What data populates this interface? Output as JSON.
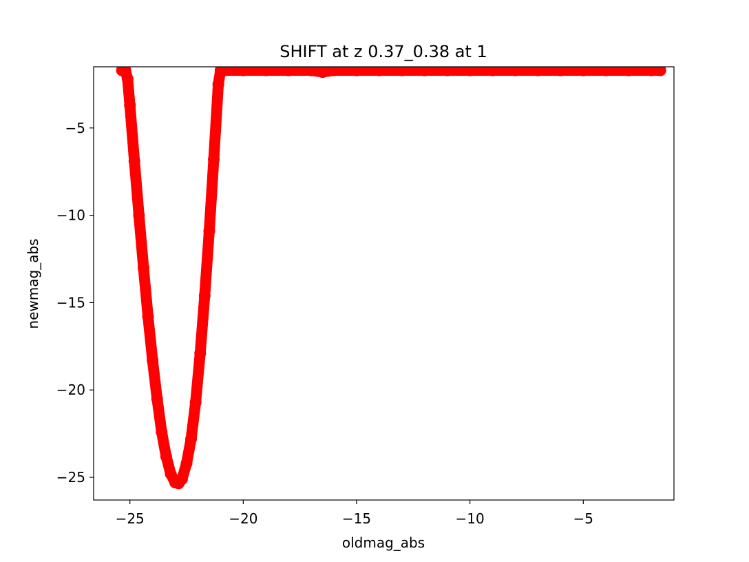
{
  "chart_data": {
    "type": "scatter",
    "title": "SHIFT at z 0.37_0.38 at 1",
    "xlabel": "oldmag_abs",
    "ylabel": "newmag_abs",
    "xlim": [
      -26.6,
      -1.0
    ],
    "ylim": [
      -26.3,
      -1.5
    ],
    "xticks": [
      -25,
      -20,
      -15,
      -10,
      -5
    ],
    "yticks": [
      -25,
      -20,
      -15,
      -10,
      -5
    ],
    "xtick_labels": [
      "−25",
      "−20",
      "−15",
      "−10",
      "−5"
    ],
    "ytick_labels": [
      "−25",
      "−20",
      "−15",
      "−10",
      "−5"
    ],
    "grid": false,
    "legend": "none",
    "marker_color": "#ff0000",
    "series": [
      {
        "x": [
          -25.35,
          -25.2,
          -25.1,
          -25.0,
          -24.8,
          -24.6,
          -24.4,
          -24.2,
          -24.0,
          -23.8,
          -23.6,
          -23.4,
          -23.2,
          -23.0,
          -22.85,
          -22.7,
          -22.5,
          -22.3,
          -22.1,
          -21.9,
          -21.7,
          -21.5,
          -21.3,
          -21.1,
          -21.0,
          -20.8,
          -20.0,
          -19.0,
          -18.0,
          -17.0,
          -16.5,
          -16.0,
          -15.0,
          -14.0,
          -13.0,
          -12.0,
          -11.0,
          -10.0,
          -9.0,
          -8.0,
          -7.0,
          -6.0,
          -5.0,
          -4.0,
          -3.0,
          -2.0,
          -1.6
        ],
        "y": [
          -1.7,
          -1.7,
          -2.2,
          -3.7,
          -6.9,
          -10.0,
          -13.0,
          -15.8,
          -18.3,
          -20.5,
          -22.4,
          -23.8,
          -24.8,
          -25.3,
          -25.35,
          -25.1,
          -24.2,
          -22.8,
          -20.7,
          -17.9,
          -14.6,
          -10.9,
          -6.8,
          -2.5,
          -1.7,
          -1.7,
          -1.7,
          -1.7,
          -1.7,
          -1.7,
          -1.8,
          -1.7,
          -1.7,
          -1.7,
          -1.7,
          -1.7,
          -1.7,
          -1.7,
          -1.7,
          -1.7,
          -1.7,
          -1.7,
          -1.7,
          -1.7,
          -1.7,
          -1.7,
          -1.7
        ]
      }
    ]
  }
}
